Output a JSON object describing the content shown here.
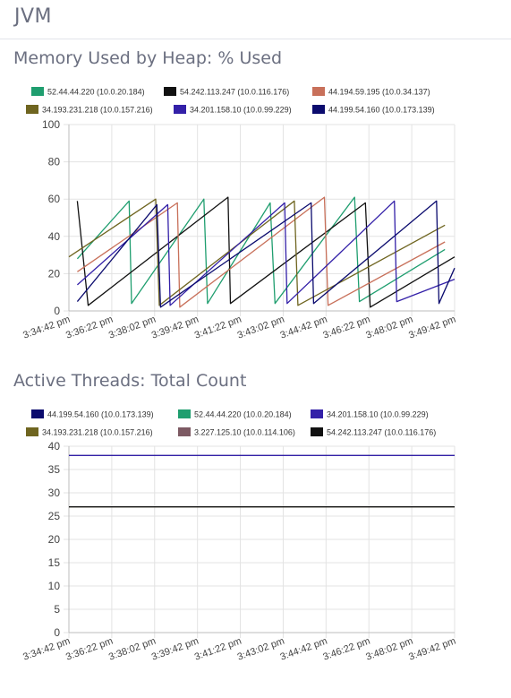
{
  "page": {
    "title": "JVM"
  },
  "charts": [
    {
      "title": "Memory Used by Heap: % Used"
    },
    {
      "title": "Active Threads: Total Count"
    }
  ],
  "chart_data": [
    {
      "type": "line",
      "title": "Memory Used by Heap: % Used",
      "ylim": [
        0,
        100
      ],
      "yticks": [
        0,
        20,
        40,
        60,
        80,
        100
      ],
      "xlim": [
        0,
        16
      ],
      "xticks": [
        "3:34:42 pm",
        "3:36:22 pm",
        "3:38:02 pm",
        "3:39:42 pm",
        "3:41:22 pm",
        "3:43:02 pm",
        "3:44:42 pm",
        "3:46:22 pm",
        "3:48:02 pm",
        "3:49:42 pm"
      ],
      "grid": true,
      "legend_position": "top",
      "series": [
        {
          "name": "52.44.44.220 (10.0.20.184)",
          "color": "#1f9e6f",
          "x": [
            0.35,
            2.5,
            2.6,
            5.6,
            5.75,
            8.35,
            8.55,
            11.85,
            12.05,
            15.6
          ],
          "y": [
            28,
            59,
            4,
            60,
            4,
            58,
            4,
            61,
            5,
            33
          ]
        },
        {
          "name": "54.242.113.247 (10.0.116.176)",
          "color": "#111111",
          "x": [
            0.35,
            0.8,
            6.6,
            6.7,
            12.3,
            12.5,
            16
          ],
          "y": [
            59,
            3,
            61,
            4,
            58,
            2,
            29
          ]
        },
        {
          "name": "44.194.59.195 (10.0.34.137)",
          "color": "#c8705a",
          "x": [
            0.35,
            4.5,
            4.6,
            10.6,
            10.75,
            15.6
          ],
          "y": [
            21,
            58,
            2,
            61,
            3,
            37
          ]
        },
        {
          "name": "34.193.231.218 (10.0.157.216)",
          "color": "#6f6520",
          "x": [
            0,
            3.6,
            3.75,
            9.35,
            9.5,
            15.6
          ],
          "y": [
            29,
            60,
            3,
            59,
            3,
            46
          ]
        },
        {
          "name": "34.201.158.10 (10.0.99.229)",
          "color": "#3320a8",
          "x": [
            0.35,
            4.1,
            4.2,
            8.95,
            9.05,
            13.5,
            13.6,
            16
          ],
          "y": [
            14,
            57,
            3,
            58,
            4,
            59,
            5,
            17
          ]
        },
        {
          "name": "44.199.54.160 (10.0.173.139)",
          "color": "#0b0b6e",
          "x": [
            0.35,
            3.65,
            3.8,
            10.05,
            10.15,
            15.25,
            15.35,
            16
          ],
          "y": [
            5,
            57,
            2,
            58,
            4,
            59,
            4,
            23
          ]
        }
      ]
    },
    {
      "type": "line",
      "title": "Active Threads: Total Count",
      "ylim": [
        0,
        40
      ],
      "yticks": [
        0,
        5,
        10,
        15,
        20,
        25,
        30,
        35,
        40
      ],
      "xlim": [
        0,
        16
      ],
      "xticks": [
        "3:34:42 pm",
        "3:36:22 pm",
        "3:38:02 pm",
        "3:39:42 pm",
        "3:41:22 pm",
        "3:43:02 pm",
        "3:44:42 pm",
        "3:46:22 pm",
        "3:48:02 pm",
        "3:49:42 pm"
      ],
      "grid": true,
      "legend_position": "top",
      "series": [
        {
          "name": "44.199.54.160 (10.0.173.139)",
          "color": "#0b0b6e",
          "x": [
            0,
            16
          ],
          "y": [
            38,
            38
          ]
        },
        {
          "name": "52.44.44.220 (10.0.20.184)",
          "color": "#1f9e6f",
          "x": [
            0,
            16
          ],
          "y": [
            27,
            27
          ]
        },
        {
          "name": "34.201.158.10 (10.0.99.229)",
          "color": "#3320a8",
          "x": [
            0,
            16
          ],
          "y": [
            38,
            38
          ]
        },
        {
          "name": "34.193.231.218 (10.0.157.216)",
          "color": "#6f6520",
          "x": [
            0,
            16
          ],
          "y": [
            27,
            27
          ]
        },
        {
          "name": "3.227.125.10 (10.0.114.106)",
          "color": "#7d5a63",
          "x": [
            0,
            16
          ],
          "y": [
            27,
            27
          ]
        },
        {
          "name": "54.242.113.247 (10.0.116.176)",
          "color": "#111111",
          "x": [
            0,
            16
          ],
          "y": [
            27,
            27
          ]
        }
      ]
    }
  ]
}
